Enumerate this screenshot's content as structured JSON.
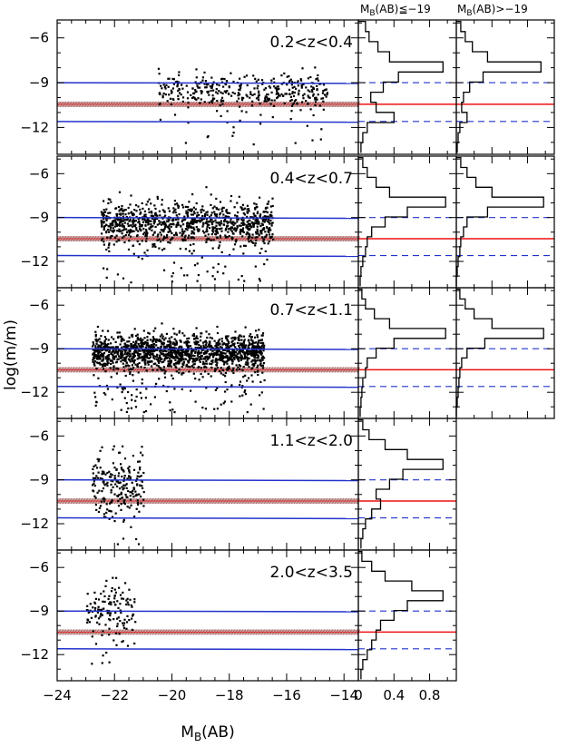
{
  "chart_data": {
    "type": "scatter",
    "xlabel_main": "M",
    "xlabel_sub": "B",
    "xlabel_tail": "(AB)",
    "ylabel": "log(m/m)",
    "xlim": [
      -24,
      -13.5
    ],
    "ylim": [
      -13.8,
      -4.8
    ],
    "xticks": [
      -24,
      -22,
      -20,
      -18,
      -16,
      -14
    ],
    "xtick_labels": [
      "−24",
      "−22",
      "−20",
      "−18",
      "−16",
      "−14"
    ],
    "yticks": [
      -6,
      -9,
      -12
    ],
    "ytick_labels": [
      "−6",
      "−9",
      "−12"
    ],
    "hist_xlim": [
      0,
      1.1
    ],
    "hist_xticks": [
      0,
      0.4,
      0.8
    ],
    "hist_xtick_labels": [
      "0",
      "0.4",
      "0.8"
    ],
    "hist_column_titles": [
      {
        "main": "M",
        "sub": "B",
        "tail": "(AB)≦−19"
      },
      {
        "main": "M",
        "sub": "B",
        "tail": "(AB)>−19"
      }
    ],
    "reference_lines": {
      "upper_blue": -9.0,
      "lower_blue": -11.6,
      "red_band_center": -10.45,
      "red_band_halfwidth": 0.18
    },
    "line_colors": {
      "blue": "#2233cc",
      "red": "#ee1111",
      "band": "#c8a7a7"
    },
    "panels": [
      {
        "label": "0.2<z<0.4",
        "cloud": {
          "xmin": -20.5,
          "xmax": -14.6,
          "ymean": -9.5,
          "ystd": 0.55,
          "n": 360,
          "outliers": 26
        },
        "hist_bright": [
          0.08,
          0.12,
          0.22,
          0.35,
          0.95,
          0.45,
          0.28,
          0.14,
          0.2,
          0.4,
          0.1,
          0.05,
          0.03
        ],
        "hist_faint": [
          0.05,
          0.1,
          0.18,
          0.35,
          0.95,
          0.3,
          0.15,
          0.08,
          0.06,
          0.12,
          0.04,
          0.02,
          0.01
        ]
      },
      {
        "label": "0.4<z<0.7",
        "cloud": {
          "xmin": -22.5,
          "xmax": -16.5,
          "ymean": -9.3,
          "ystd": 0.7,
          "n": 950,
          "outliers": 70
        },
        "hist_bright": [
          0.05,
          0.1,
          0.2,
          0.35,
          0.98,
          0.55,
          0.3,
          0.15,
          0.1,
          0.08,
          0.05,
          0.03,
          0.02
        ],
        "hist_faint": [
          0.05,
          0.12,
          0.22,
          0.4,
          0.98,
          0.35,
          0.12,
          0.08,
          0.05,
          0.04,
          0.02,
          0.01,
          0.0
        ]
      },
      {
        "label": "0.7<z<1.1",
        "cloud": {
          "xmin": -22.8,
          "xmax": -16.8,
          "ymean": -9.2,
          "ystd": 0.6,
          "n": 1500,
          "outliers": 120
        },
        "hist_bright": [
          0.04,
          0.08,
          0.18,
          0.35,
          0.98,
          0.4,
          0.2,
          0.1,
          0.08,
          0.05,
          0.04,
          0.03,
          0.02
        ],
        "hist_faint": [
          0.04,
          0.1,
          0.2,
          0.4,
          0.98,
          0.32,
          0.12,
          0.06,
          0.04,
          0.03,
          0.02,
          0.01,
          0.0
        ]
      },
      {
        "label": "1.1<z<2.0",
        "cloud": {
          "xmin": -22.8,
          "xmax": -21.0,
          "ymean": -9.4,
          "ystd": 1.1,
          "n": 210,
          "outliers": 10
        },
        "hist_bright": [
          0.05,
          0.12,
          0.3,
          0.55,
          0.95,
          0.5,
          0.35,
          0.2,
          0.25,
          0.15,
          0.08,
          0.05,
          0.03
        ],
        "hist_faint": []
      },
      {
        "label": "2.0<z<3.5",
        "cloud": {
          "xmin": -23.0,
          "xmax": -21.3,
          "ymean": -9.0,
          "ystd": 1.0,
          "n": 130,
          "outliers": 8
        },
        "hist_bright": [
          0.04,
          0.15,
          0.3,
          0.6,
          0.95,
          0.55,
          0.4,
          0.25,
          0.2,
          0.15,
          0.1,
          0.05,
          0.03
        ],
        "hist_faint": []
      }
    ]
  }
}
